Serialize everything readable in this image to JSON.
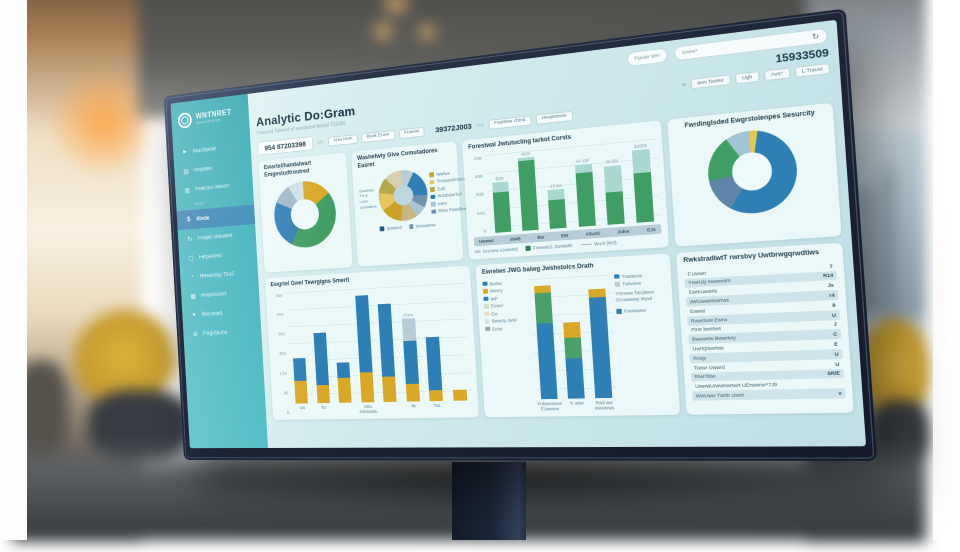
{
  "colors": {
    "sidebar_teal": "#35aab4",
    "accent_blue": "#2e7fb5",
    "green": "#3f9e63",
    "gold": "#d9a827",
    "teal_light": "#a8d8d0",
    "slate_light": "#b9cdd8"
  },
  "topbar": {
    "field1": "Pguiar WH",
    "field2": "Snew*",
    "refresh_icon": "↻"
  },
  "sidebar": {
    "logo": "WNTNRET",
    "logo_sub": "anacushurtm",
    "items": [
      {
        "icon": "►",
        "label": "Iwushpewt"
      },
      {
        "icon": "▤",
        "label": "Amplites"
      },
      {
        "icon": "▥",
        "label": "Pewcasi Alkerm"
      },
      {
        "divider": true,
        "label": "Srnpk"
      },
      {
        "icon": "$",
        "label": "Itinde",
        "active": true
      },
      {
        "icon": "↻",
        "label": "Freges Beluierd"
      },
      {
        "icon": "▢",
        "label": "Ferpetitied"
      },
      {
        "icon": "◔",
        "label": "Hewerday Tire2"
      },
      {
        "icon": "▦",
        "label": "Aequtresert"
      },
      {
        "icon": "●",
        "label": "Besselett"
      },
      {
        "icon": "⚙",
        "label": "Fwgrdautie"
      }
    ]
  },
  "header": {
    "title": "Analytic Do:Gram",
    "subtitle": "Fanscad Talened of wandeded behalf T1S/4G",
    "stat": "15933509",
    "filter_prefix": "w",
    "filters": [
      "aws Tawse",
      "Ugh",
      "Avs*",
      "L.Traust"
    ]
  },
  "toolbar": {
    "id_left": "954 87203398",
    "id_left_suffix": "(w)",
    "buttons_left": [
      "Ania Hum",
      "Beak Ecam",
      "Frasow"
    ],
    "id_mid": "39372J003",
    "id_mid_suffix": "(w)",
    "buttons_right": [
      "Fasthew chtral",
      "Hwqtwtwss"
    ]
  },
  "cards": {
    "donut1": {
      "title": "Ewartel/handalwart Emgestudtroutred",
      "segments": [
        {
          "color": "#d9a827",
          "value": 15
        },
        {
          "color": "#3f9e63",
          "value": 43
        },
        {
          "color": "#2e7fb5",
          "value": 24
        },
        {
          "color": "#9fb8cc",
          "value": 10
        },
        {
          "color": "#cfe0e8",
          "value": 8
        }
      ]
    },
    "donut2": {
      "title": "Washefwty Give Comutadores Easret",
      "note": "Gushhtef 7% & Lown Ussadtrew",
      "segments": [
        {
          "color": "#b9cdd8",
          "value": 8
        },
        {
          "color": "#2e7fb5",
          "value": 18
        },
        {
          "color": "#6f93ad",
          "value": 8
        },
        {
          "color": "#a9c6d4",
          "value": 7
        },
        {
          "color": "#c8b580",
          "value": 11
        },
        {
          "color": "#c9a227",
          "value": 14
        },
        {
          "color": "#e3c75c",
          "value": 12
        },
        {
          "color": "#b5a94e",
          "value": 10
        },
        {
          "color": "#d9cfae",
          "value": 12
        }
      ],
      "legend": [
        {
          "color": "#c9a227",
          "label": "Iwwlws"
        },
        {
          "color": "#e3c75c",
          "label": "Tmsuasthotuert"
        },
        {
          "color": "#b5a94e",
          "label": "Zutti"
        },
        {
          "color": "#2e7fb5",
          "label": "Wdabsturfurt"
        },
        {
          "color": "#a9c6d4",
          "label": "Iown"
        },
        {
          "color": "#6f93ad",
          "label": "Ekas Fwwdlew"
        }
      ],
      "legend_bottom": [
        {
          "color": "#2a5a7a",
          "label": "Ipswtvrd"
        },
        {
          "color": "#6f93ad",
          "label": "Irinsuwmw"
        }
      ]
    },
    "bars1": {
      "title": "Forestwal Jwtutucling tarkot Corsts",
      "yticks": [
        "GW",
        "46B",
        "53B",
        "04S",
        "8"
      ],
      "max": 100,
      "bars": [
        {
          "label": "$28r",
          "stack": [
            {
              "color": "#3f9e63",
              "value": 51
            },
            {
              "color": "#a8d8d0",
              "value": 13
            }
          ]
        },
        {
          "label": "482b",
          "stack": [
            {
              "color": "#3f9e63",
              "value": 93
            },
            {
              "color": "#a8d8d0",
              "value": 4
            }
          ]
        },
        {
          "label": "43 9w",
          "stack": [
            {
              "color": "#3f9e63",
              "value": 36
            },
            {
              "color": "#a8d8d0",
              "value": 13
            }
          ]
        },
        {
          "label": "44 48F",
          "stack": [
            {
              "color": "#3f9e63",
              "value": 66
            },
            {
              "color": "#a8d8d0",
              "value": 11
            }
          ]
        },
        {
          "label": "48 95r",
          "stack": [
            {
              "color": "#3f9e63",
              "value": 40
            },
            {
              "color": "#a8d8d0",
              "value": 32
            }
          ]
        },
        {
          "label": "$3085",
          "stack": [
            {
              "color": "#3f9e63",
              "value": 60
            },
            {
              "color": "#a8d8d0",
              "value": 28
            }
          ]
        }
      ],
      "xlabels": [
        "Uwwwt",
        "404B",
        "Bw",
        "EW",
        "A5u4S",
        "Jukw",
        "EJs"
      ],
      "legend": [
        {
          "marker": "tick",
          "color": "#9fb8c4",
          "label": "bzzzww e1ww2w)"
        },
        {
          "marker": "square",
          "color": "#2f7a52",
          "label": "Frwwwts1 Swrdwtls"
        },
        {
          "marker": "line",
          "color": "#9fb8c4",
          "label": "WuAl (W3)"
        }
      ]
    },
    "donut3": {
      "title": "Fwrdinglsded Ewgrstolenpes Sesurcity",
      "segments": [
        {
          "color": "#e6c84a",
          "value": 3
        },
        {
          "color": "#2e7fb5",
          "value": 56
        },
        {
          "color": "#5c85a8",
          "value": 14
        },
        {
          "color": "#3f9e63",
          "value": 18
        },
        {
          "color": "#9fc4d4",
          "value": 9
        }
      ]
    },
    "bars2": {
      "title": "Ewgrtel Gwel Tewrgigns Smertl",
      "yticks": [
        "500",
        "45w",
        "040",
        "300",
        "1.50",
        ".45",
        "8"
      ],
      "max": 500,
      "bars": [
        {
          "xlabel": "Uw",
          "stack": [
            {
              "color": "#d9a827",
              "value": 100
            },
            {
              "color": "#2e7fb5",
              "value": 100
            }
          ]
        },
        {
          "xlabel": "4U",
          "stack": [
            {
              "color": "#d9a827",
              "value": 80
            },
            {
              "color": "#2e7fb5",
              "value": 230
            }
          ]
        },
        {
          "xlabel": "",
          "stack": [
            {
              "color": "#d9a827",
              "value": 110
            },
            {
              "color": "#2e7fb5",
              "value": 65
            }
          ]
        },
        {
          "xlabel": "M54 Jwbwwatu",
          "stack": [
            {
              "color": "#d9a827",
              "value": 130
            },
            {
              "color": "#2e7fb5",
              "value": 340
            }
          ]
        },
        {
          "xlabel": "",
          "stack": [
            {
              "color": "#d9a827",
              "value": 110
            },
            {
              "color": "#2e7fb5",
              "value": 315
            }
          ]
        },
        {
          "xlabel": "4b",
          "label": "41ww",
          "stack": [
            {
              "color": "#d9a827",
              "value": 75
            },
            {
              "color": "#2e7fb5",
              "value": 185
            },
            {
              "color": "#b9cdd8",
              "value": 100
            }
          ]
        },
        {
          "xlabel": "Twi",
          "stack": [
            {
              "color": "#d9a827",
              "value": 45
            },
            {
              "color": "#2e7fb5",
              "value": 230
            }
          ]
        },
        {
          "xlabel": "",
          "stack": [
            {
              "color": "#d9a827",
              "value": 45
            }
          ]
        }
      ]
    },
    "bars3": {
      "title": "Ewrelws JWG balwg Jwshstolcs Drath",
      "legend_left": [
        {
          "color": "#2e7fb5",
          "label": "Berkw"
        },
        {
          "color": "#d9a827",
          "label": "Mwrcy"
        },
        {
          "color": "#2e7fb5",
          "label": "IwP"
        },
        {
          "color": "#cfe0c8",
          "label": "Eower"
        },
        {
          "color": "#e8e0c0",
          "label": "Ew"
        },
        {
          "color": "#d8e4e8",
          "label": "Bwwrty JwW"
        },
        {
          "color": "#8fa4ae",
          "label": "Ectur"
        }
      ],
      "legend_right": [
        {
          "color": "#2e7fb5",
          "label": "Traswrew"
        },
        {
          "color": "#b9cdd8",
          "label": "Twlwsew"
        }
      ],
      "note_right": "YOrsww Twcjlwws Orcwwwwy Wywl",
      "legend_right2": [
        {
          "color": "#2e7fb5",
          "label": "Frwwwww"
        }
      ],
      "max": 100,
      "bars": [
        {
          "xlabel": "Frduwvwrws E1wwww",
          "stack": [
            {
              "color": "#2e7fb5",
              "value": 62
            },
            {
              "color": "#4aa06a",
              "value": 26
            },
            {
              "color": "#d9a827",
              "value": 6
            }
          ]
        },
        {
          "xlabel": "Tr wlwt",
          "stack": [
            {
              "color": "#2e7fb5",
              "value": 33
            },
            {
              "color": "#4aa06a",
              "value": 17
            },
            {
              "color": "#d9a827",
              "value": 12
            }
          ]
        },
        {
          "xlabel": "Rw4 ww 4wwwrws",
          "stack": [
            {
              "color": "#2e7fb5",
              "value": 82
            },
            {
              "color": "#d9a827",
              "value": 7
            }
          ]
        }
      ]
    },
    "table": {
      "title": "RwkstradlwtT rwrsbvy Uwtbrwgqrwdtiws",
      "rows": [
        {
          "label": "F.Uwwrt",
          "value": "7"
        },
        {
          "label": "YrwrUty twwwwtrs",
          "value": "R14"
        },
        {
          "label": "EwrKuwwrts",
          "value": "Js"
        },
        {
          "label": "JWUwwtrtswrtws",
          "value": "r4"
        },
        {
          "label": "Ewwst",
          "value": "9"
        },
        {
          "label": "Rwwrtwst Ewrw",
          "value": "U"
        },
        {
          "label": "Ftrsr bwtrtws",
          "value": "J"
        },
        {
          "label": "Bwwwrtw Bwwrtwy",
          "value": "C"
        },
        {
          "label": "Uwrtrjrswrtws",
          "value": "E"
        },
        {
          "label": "Rrwjs",
          "value": "U"
        },
        {
          "label": "Twtwr Uwwrd",
          "value": "U"
        },
        {
          "label": "RtwrTstw",
          "value": "5R/E"
        },
        {
          "label": "UwwwUrwwtrwrtwrt UErwwrwr*7J9",
          "value": ""
        },
        {
          "label": "WwUww Twrttr Utwrt",
          "value": "v"
        }
      ]
    }
  }
}
